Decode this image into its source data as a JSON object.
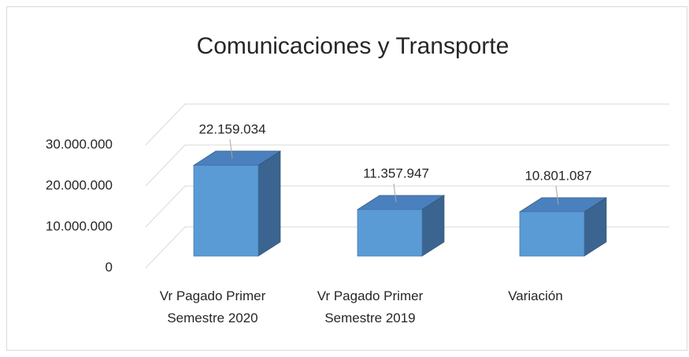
{
  "chart_data": {
    "type": "bar3d",
    "title": "Comunicaciones y Transporte",
    "categories": [
      "Vr Pagado Primer Semestre 2020",
      "Vr Pagado Primer Semestre 2019",
      "Variación"
    ],
    "values": [
      22159034,
      11357947,
      10801087
    ],
    "value_labels": [
      "22.159.034",
      "11.357.947",
      "10.801.087"
    ],
    "color": "#5b9bd5",
    "ylim": [
      0,
      30000000
    ],
    "yticks": [
      0,
      {
        "value": 10000000,
        "label": "10.000.000"
      },
      {
        "value": 20000000,
        "label": "20.000.000"
      },
      {
        "value": 30000000,
        "label": "30.000.000"
      }
    ],
    "grid": true
  }
}
